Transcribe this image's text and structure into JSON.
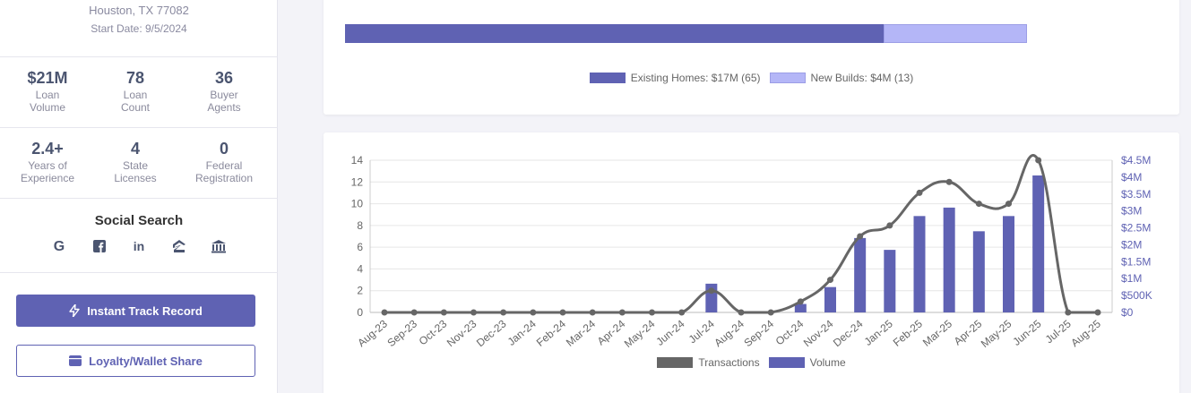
{
  "profile": {
    "address_line": "Houston, TX 77082",
    "start_date": "Start Date: 9/5/2024"
  },
  "stats_row1": [
    {
      "value": "$21M",
      "label1": "Loan",
      "label2": "Volume"
    },
    {
      "value": "78",
      "label1": "Loan",
      "label2": "Count"
    },
    {
      "value": "36",
      "label1": "Buyer",
      "label2": "Agents"
    }
  ],
  "stats_row2": [
    {
      "value": "2.4+",
      "label1": "Years of",
      "label2": "Experience"
    },
    {
      "value": "4",
      "label1": "State",
      "label2": "Licenses"
    },
    {
      "value": "0",
      "label1": "Federal",
      "label2": "Registration"
    }
  ],
  "social": {
    "title": "Social Search",
    "icons": [
      "google-icon",
      "facebook-icon",
      "linkedin-icon",
      "zillow-icon",
      "bank-icon"
    ]
  },
  "buttons": {
    "track_record": "Instant Track Record",
    "loyalty": "Loyalty/Wallet Share"
  },
  "colors": {
    "primary": "#5f62b3",
    "light": "#b4b6f7",
    "line": "#666666"
  },
  "split": {
    "existing_share": 0.79,
    "existing_label": "Existing Homes: $17M (65)",
    "new_label": "New Builds: $4M (13)"
  },
  "chart_data": {
    "type": "bar",
    "categories": [
      "Aug-23",
      "Sep-23",
      "Oct-23",
      "Nov-23",
      "Dec-23",
      "Jan-24",
      "Feb-24",
      "Mar-24",
      "Apr-24",
      "May-24",
      "Jun-24",
      "Jul-24",
      "Aug-24",
      "Sep-24",
      "Oct-24",
      "Nov-24",
      "Dec-24",
      "Jan-25",
      "Feb-25",
      "Mar-25",
      "Apr-25",
      "May-25",
      "Jun-25",
      "Jul-25",
      "Aug-25"
    ],
    "series": [
      {
        "name": "Transactions",
        "type": "line",
        "axis": "left",
        "values": [
          0,
          0,
          0,
          0,
          0,
          0,
          0,
          0,
          0,
          0,
          0,
          2,
          0,
          0,
          1,
          3,
          7,
          8,
          11,
          12,
          10,
          10,
          14,
          0,
          0
        ]
      },
      {
        "name": "Volume",
        "type": "bar",
        "axis": "right",
        "values": [
          0,
          0,
          0,
          0,
          0,
          0,
          0,
          0,
          0,
          0,
          0,
          850000,
          0,
          0,
          250000,
          750000,
          2200000,
          1850000,
          2850000,
          3100000,
          2400000,
          2850000,
          4050000,
          0,
          0
        ]
      }
    ],
    "y_left": {
      "min": 0,
      "max": 14,
      "ticks": [
        "0",
        "2",
        "4",
        "6",
        "8",
        "10",
        "12",
        "14"
      ]
    },
    "y_right": {
      "min": 0,
      "max": 4500000,
      "ticks": [
        "$0",
        "$500K",
        "$1M",
        "$1.5M",
        "$2M",
        "$2.5M",
        "$3M",
        "$3.5M",
        "$4M",
        "$4.5M"
      ]
    },
    "grid": true,
    "legend_position": "bottom"
  }
}
